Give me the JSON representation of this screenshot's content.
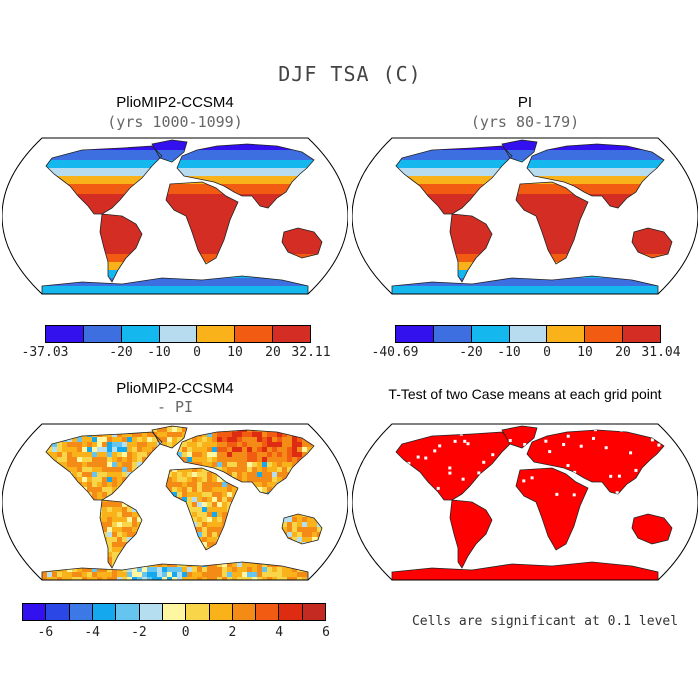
{
  "figure": {
    "title": "DJF TSA (C)"
  },
  "panels": [
    {
      "title": "PlioMIP2-CCSM4",
      "subtitle": "(yrs 1000-1099)"
    },
    {
      "title": "PI",
      "subtitle": "(yrs 80-179)"
    },
    {
      "title": "PlioMIP2-CCSM4",
      "subtitle": "- PI"
    },
    {
      "title": "T-Test of two Case means at each grid point",
      "subtitle": ""
    }
  ],
  "colorbars": {
    "abs1": {
      "colors": [
        "#3311ee",
        "#3d6fe0",
        "#14b7ee",
        "#b7dcef",
        "#f9b21a",
        "#f15b12",
        "#d32d24"
      ],
      "labels": [
        {
          "text": "-37.03",
          "pos": 0
        },
        {
          "text": "-20",
          "pos": 2
        },
        {
          "text": "-10",
          "pos": 3
        },
        {
          "text": "0",
          "pos": 4
        },
        {
          "text": "10",
          "pos": 5
        },
        {
          "text": "20",
          "pos": 6
        },
        {
          "text": "32.11",
          "pos": 7
        }
      ]
    },
    "abs2": {
      "colors": [
        "#3311ee",
        "#3d6fe0",
        "#14b7ee",
        "#b7dcef",
        "#f9b21a",
        "#f15b12",
        "#d32d24"
      ],
      "labels": [
        {
          "text": "-40.69",
          "pos": 0
        },
        {
          "text": "-20",
          "pos": 2
        },
        {
          "text": "-10",
          "pos": 3
        },
        {
          "text": "0",
          "pos": 4
        },
        {
          "text": "10",
          "pos": 5
        },
        {
          "text": "20",
          "pos": 6
        },
        {
          "text": "31.04",
          "pos": 7
        }
      ]
    },
    "diff": {
      "colors": [
        "#3311ee",
        "#2b47e6",
        "#3d79e6",
        "#14a9ee",
        "#66c5ee",
        "#b5dff0",
        "#fff6a2",
        "#f9d54a",
        "#f9b21a",
        "#f58b17",
        "#f15b12",
        "#dd2c12",
        "#c42a22"
      ],
      "labels": [
        {
          "text": "-6",
          "pos": 1
        },
        {
          "text": "-4",
          "pos": 3
        },
        {
          "text": "-2",
          "pos": 5
        },
        {
          "text": "0",
          "pos": 7
        },
        {
          "text": "2",
          "pos": 9
        },
        {
          "text": "4",
          "pos": 11
        },
        {
          "text": "6",
          "pos": 13
        }
      ]
    }
  },
  "footnote": "Cells are significant at 0.1 level"
}
